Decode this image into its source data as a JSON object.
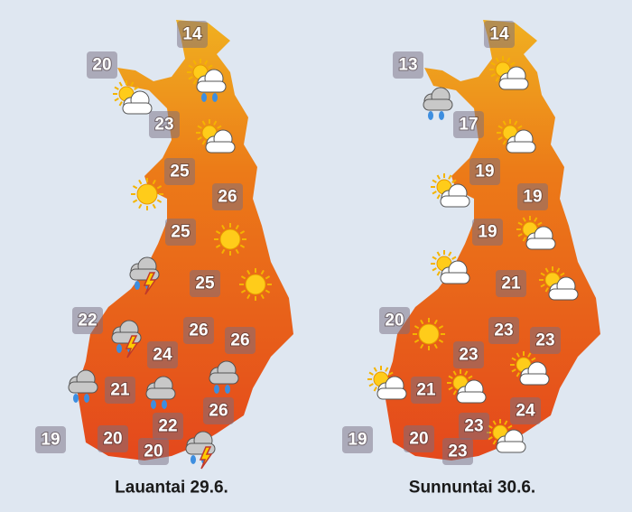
{
  "maps": [
    {
      "caption": "Lauantai 29.6.",
      "temperatures": [
        14,
        20,
        23,
        25,
        26,
        25,
        25,
        22,
        26,
        26,
        24,
        21,
        26,
        22,
        19,
        20,
        20
      ]
    },
    {
      "caption": "Sunnuntai 30.6.",
      "temperatures": [
        14,
        13,
        17,
        19,
        19,
        19,
        21,
        20,
        23,
        23,
        23,
        21,
        24,
        23,
        19,
        20,
        23
      ]
    }
  ]
}
